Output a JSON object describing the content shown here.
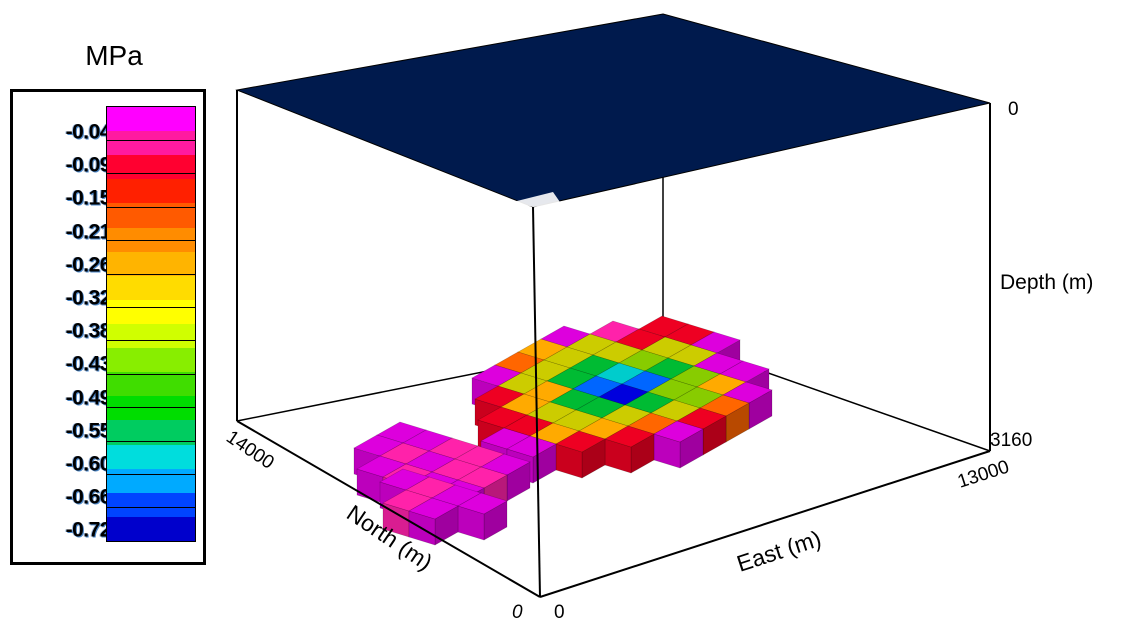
{
  "legend": {
    "unit": "MPa",
    "tick_labels": [
      "-0.04",
      "-0.09",
      "-0.15",
      "-0.21",
      "-0.26",
      "-0.32",
      "-0.38",
      "-0.43",
      "-0.49",
      "-0.55",
      "-0.60",
      "-0.66",
      "-0.72"
    ],
    "colors": [
      "#ff00ff",
      "#ff1aa0",
      "#ff0030",
      "#ff2000",
      "#ff5a00",
      "#ff8c00",
      "#ffb400",
      "#ffdc00",
      "#ffff00",
      "#d0ff00",
      "#88ee00",
      "#40dd00",
      "#00dd00",
      "#00cc60",
      "#00dddd",
      "#00aaff",
      "#0044ff",
      "#0000cc"
    ]
  },
  "axes": {
    "north_label": "North (m)",
    "east_label": "East (m)",
    "depth_label": "Depth (m)",
    "north_ticks": [
      "14000",
      "0"
    ],
    "east_ticks": [
      "0",
      "13000"
    ],
    "depth_ticks": [
      "0",
      "3160"
    ]
  },
  "chart_data": {
    "type": "3d-voxel",
    "top_surface_color": "#001a4d",
    "value_range": [
      -0.72,
      -0.04
    ],
    "x_range_m": [
      0,
      13000
    ],
    "y_range_m": [
      0,
      14000
    ],
    "z_range_m": [
      0,
      3160
    ]
  }
}
